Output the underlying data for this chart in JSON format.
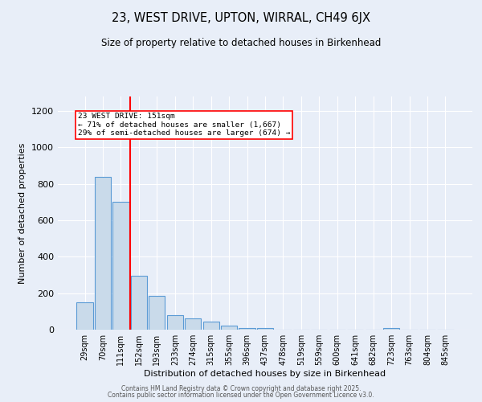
{
  "title1": "23, WEST DRIVE, UPTON, WIRRAL, CH49 6JX",
  "title2": "Size of property relative to detached houses in Birkenhead",
  "xlabel": "Distribution of detached houses by size in Birkenhead",
  "ylabel": "Number of detached properties",
  "categories": [
    "29sqm",
    "70sqm",
    "111sqm",
    "152sqm",
    "193sqm",
    "233sqm",
    "274sqm",
    "315sqm",
    "355sqm",
    "396sqm",
    "437sqm",
    "478sqm",
    "519sqm",
    "559sqm",
    "600sqm",
    "641sqm",
    "682sqm",
    "723sqm",
    "763sqm",
    "804sqm",
    "845sqm"
  ],
  "values": [
    150,
    840,
    700,
    295,
    185,
    80,
    60,
    45,
    20,
    10,
    10,
    2,
    2,
    2,
    0,
    0,
    0,
    10,
    0,
    0,
    0
  ],
  "bar_color": "#c9daea",
  "bar_edge_color": "#5b9bd5",
  "bar_edge_width": 0.8,
  "redline_x": 2.5,
  "annotation_line1": "23 WEST DRIVE: 151sqm",
  "annotation_line2": "← 71% of detached houses are smaller (1,667)",
  "annotation_line3": "29% of semi-detached houses are larger (674) →",
  "ylim": [
    0,
    1280
  ],
  "yticks": [
    0,
    200,
    400,
    600,
    800,
    1000,
    1200
  ],
  "background_color": "#e8eef8",
  "grid_color": "#ffffff",
  "footer1": "Contains HM Land Registry data © Crown copyright and database right 2025.",
  "footer2": "Contains public sector information licensed under the Open Government Licence v3.0."
}
